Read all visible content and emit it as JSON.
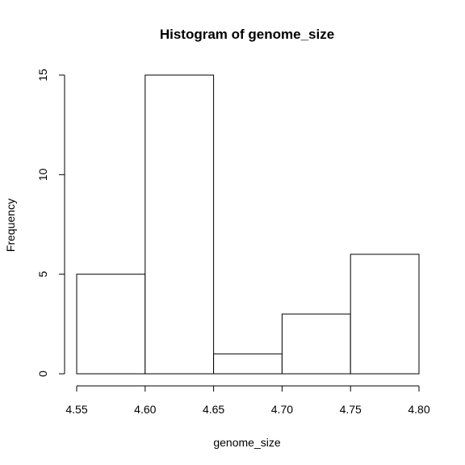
{
  "chart_data": {
    "type": "bar",
    "title": "Histogram of genome_size",
    "xlabel": "genome_size",
    "ylabel": "Frequency",
    "bins": [
      {
        "start": 4.55,
        "end": 4.6,
        "count": 5
      },
      {
        "start": 4.6,
        "end": 4.65,
        "count": 15
      },
      {
        "start": 4.65,
        "end": 4.7,
        "count": 1
      },
      {
        "start": 4.7,
        "end": 4.75,
        "count": 3
      },
      {
        "start": 4.75,
        "end": 4.8,
        "count": 6
      }
    ],
    "xlim": [
      4.55,
      4.8
    ],
    "ylim": [
      0,
      15
    ],
    "x_ticks": [
      "4.55",
      "4.60",
      "4.65",
      "4.70",
      "4.75",
      "4.80"
    ],
    "y_ticks": [
      "0",
      "5",
      "10",
      "15"
    ],
    "grid": false,
    "colors": {
      "bar_fill": "#ffffff",
      "bar_stroke": "#000000"
    }
  }
}
